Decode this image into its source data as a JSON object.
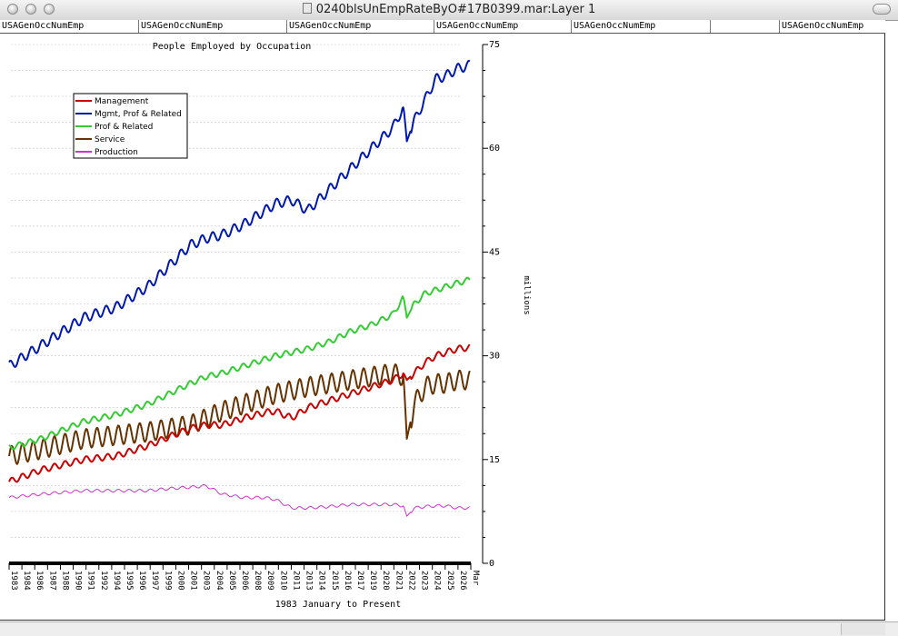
{
  "window": {
    "title": "0240blsUnEmpRateByO#17B0399.mar:Layer 1"
  },
  "header_cells": [
    "USAGenOccNumEmp",
    "USAGenOccNumEmp",
    "USAGenOccNumEmp",
    "USAGenOccNumEmp",
    "USAGenOccNumEmp",
    "",
    "USAGenOccNumEmp"
  ],
  "colors": {
    "management": "#cc0000",
    "mgmt_prof": "#0018b0",
    "prof": "#33cc33",
    "service": "#663300",
    "production": "#cc33cc"
  },
  "chart_data": {
    "type": "line",
    "title": "People Employed by Occupation",
    "xlabel": "1983 January to Present",
    "ylabel": "millions",
    "ylim": [
      0,
      75
    ],
    "yticks": [
      0,
      15,
      30,
      45,
      60,
      75
    ],
    "grid": "horizontal dashed",
    "legend_position": "top-left",
    "x_tick_labels": [
      "1983",
      "1984",
      "1986",
      "1987",
      "1988",
      "1990",
      "1991",
      "1992",
      "1994",
      "1995",
      "1996",
      "1997",
      "1999",
      "2000",
      "2001",
      "2003",
      "2004",
      "2005",
      "2006",
      "2008",
      "2009",
      "2010",
      "2011",
      "2013",
      "2014",
      "2015",
      "2016",
      "2017",
      "2019",
      "2020",
      "2021",
      "2022",
      "2023",
      "2024",
      "2025",
      "2026",
      "Mar"
    ],
    "x": [
      1983.0,
      1986.0,
      1990.0,
      1993.0,
      1996.0,
      1998.0,
      2000.0,
      2001.5,
      2003.0,
      2005.0,
      2007.0,
      2008.0,
      2009.5,
      2011.0,
      2013.0,
      2015.0,
      2017.0,
      2019.0,
      2020.0,
      2020.3,
      2021.0,
      2022.0,
      2023.0,
      2024.0,
      2025.0,
      2026.2
    ],
    "series": [
      {
        "name": "Management",
        "color": "#cc0000",
        "values": [
          11.8,
          13.5,
          15.0,
          15.5,
          17.0,
          18.3,
          19.5,
          20.0,
          20.0,
          21.0,
          21.8,
          22.0,
          21.0,
          22.5,
          23.5,
          24.5,
          25.5,
          26.5,
          27.5,
          26.5,
          27.5,
          29.0,
          30.0,
          30.5,
          31.0,
          31.2
        ]
      },
      {
        "name": "Mgmt, Prof & Related",
        "color": "#0018b0",
        "values": [
          28.5,
          31.5,
          35.5,
          37.0,
          40.0,
          43.0,
          46.0,
          47.0,
          47.5,
          49.0,
          51.0,
          52.0,
          52.5,
          51.0,
          54.0,
          57.0,
          60.0,
          63.0,
          66.0,
          61.0,
          64.0,
          67.0,
          70.0,
          70.5,
          71.5,
          72.0
        ]
      },
      {
        "name": "Prof & Related",
        "color": "#33cc33",
        "values": [
          16.7,
          18.0,
          20.5,
          21.5,
          23.0,
          24.5,
          26.0,
          27.0,
          27.5,
          28.5,
          29.5,
          30.0,
          30.5,
          31.0,
          32.0,
          33.5,
          34.5,
          36.0,
          38.5,
          35.5,
          37.5,
          39.0,
          39.5,
          40.0,
          40.5,
          41.0
        ]
      },
      {
        "name": "Service",
        "color": "#663300",
        "values": [
          15.5,
          16.5,
          18.0,
          18.5,
          19.0,
          19.5,
          20.0,
          21.0,
          22.0,
          23.0,
          24.0,
          24.5,
          25.0,
          25.5,
          26.0,
          26.5,
          27.0,
          27.5,
          27.0,
          18.0,
          23.0,
          25.5,
          26.0,
          26.0,
          26.5,
          26.5
        ]
      },
      {
        "name": "Production",
        "color": "#cc33cc",
        "values": [
          9.5,
          10.0,
          10.5,
          10.5,
          10.5,
          10.8,
          11.0,
          11.2,
          10.0,
          9.5,
          9.5,
          9.2,
          8.0,
          8.0,
          8.2,
          8.5,
          8.5,
          8.5,
          8.3,
          6.8,
          8.0,
          8.2,
          8.3,
          8.3,
          8.0,
          8.0
        ]
      }
    ]
  }
}
